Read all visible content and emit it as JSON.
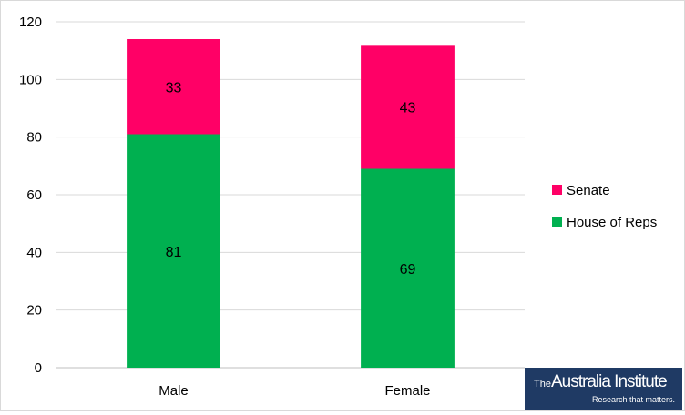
{
  "chart_data": {
    "type": "bar",
    "stacked": true,
    "categories": [
      "Male",
      "Female"
    ],
    "series": [
      {
        "name": "House of Reps",
        "values": [
          81,
          69
        ],
        "color": "#00b050"
      },
      {
        "name": "Senate",
        "values": [
          33,
          43
        ],
        "color": "#ff0066"
      }
    ],
    "title": "",
    "xlabel": "",
    "ylabel": "",
    "ylim": [
      0,
      120
    ],
    "yticks": [
      0,
      20,
      40,
      60,
      80,
      100,
      120
    ],
    "grid": true,
    "legend_position": "right"
  },
  "logo": {
    "prefix": "The",
    "name": "Australia Institute",
    "tagline": "Research that matters."
  }
}
